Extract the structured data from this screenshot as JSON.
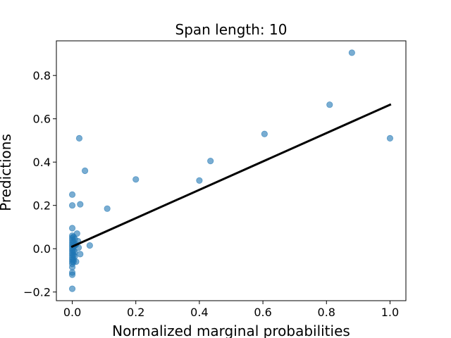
{
  "chart_data": {
    "type": "scatter",
    "title": "Span length: 10",
    "xlabel": "Normalized marginal probabilities",
    "ylabel": "Predictions",
    "xlim": [
      -0.05,
      1.05
    ],
    "ylim": [
      -0.24,
      0.96
    ],
    "x_ticks": [
      {
        "value": 0.0,
        "label": "0.0"
      },
      {
        "value": 0.2,
        "label": "0.2"
      },
      {
        "value": 0.4,
        "label": "0.4"
      },
      {
        "value": 0.6,
        "label": "0.6"
      },
      {
        "value": 0.8,
        "label": "0.8"
      },
      {
        "value": 1.0,
        "label": "1.0"
      }
    ],
    "y_ticks": [
      {
        "value": -0.2,
        "label": "−0.2"
      },
      {
        "value": 0.0,
        "label": "0.0"
      },
      {
        "value": 0.2,
        "label": "0.2"
      },
      {
        "value": 0.4,
        "label": "0.4"
      },
      {
        "value": 0.6,
        "label": "0.6"
      },
      {
        "value": 0.8,
        "label": "0.8"
      }
    ],
    "grid": false,
    "marker_color": "#1f77b4",
    "marker_alpha": 0.6,
    "points": [
      [
        0.0,
        0.25
      ],
      [
        0.0,
        0.2
      ],
      [
        0.0,
        0.095
      ],
      [
        0.0,
        0.06
      ],
      [
        0.0,
        0.05
      ],
      [
        0.0,
        0.04
      ],
      [
        0.0,
        0.03
      ],
      [
        0.0,
        0.02
      ],
      [
        0.0,
        0.01
      ],
      [
        0.0,
        0.0
      ],
      [
        0.0,
        -0.01
      ],
      [
        0.0,
        -0.02
      ],
      [
        0.0,
        -0.03
      ],
      [
        0.0,
        -0.04
      ],
      [
        0.0,
        -0.05
      ],
      [
        0.0,
        -0.06
      ],
      [
        0.0,
        -0.07
      ],
      [
        0.0,
        -0.085
      ],
      [
        0.0,
        -0.11
      ],
      [
        0.0,
        -0.12
      ],
      [
        0.0,
        -0.185
      ],
      [
        0.004,
        0.055
      ],
      [
        0.004,
        0.03
      ],
      [
        0.004,
        0.01
      ],
      [
        0.004,
        -0.01
      ],
      [
        0.004,
        -0.03
      ],
      [
        0.004,
        -0.05
      ],
      [
        0.004,
        -0.06
      ],
      [
        0.008,
        0.045
      ],
      [
        0.008,
        0.015
      ],
      [
        0.008,
        -0.015
      ],
      [
        0.008,
        -0.035
      ],
      [
        0.012,
        0.02
      ],
      [
        0.012,
        -0.06
      ],
      [
        0.015,
        0.07
      ],
      [
        0.018,
        0.035
      ],
      [
        0.02,
        0.005
      ],
      [
        0.022,
        0.51
      ],
      [
        0.025,
        0.205
      ],
      [
        0.025,
        -0.025
      ],
      [
        0.04,
        0.36
      ],
      [
        0.055,
        0.015
      ],
      [
        0.11,
        0.185
      ],
      [
        0.2,
        0.32
      ],
      [
        0.4,
        0.315
      ],
      [
        0.435,
        0.405
      ],
      [
        0.605,
        0.53
      ],
      [
        0.81,
        0.665
      ],
      [
        0.88,
        0.905
      ],
      [
        1.0,
        0.51
      ]
    ],
    "fit_line": {
      "x": [
        0.0,
        1.0
      ],
      "y": [
        0.01,
        0.665
      ],
      "color": "#000000"
    }
  }
}
